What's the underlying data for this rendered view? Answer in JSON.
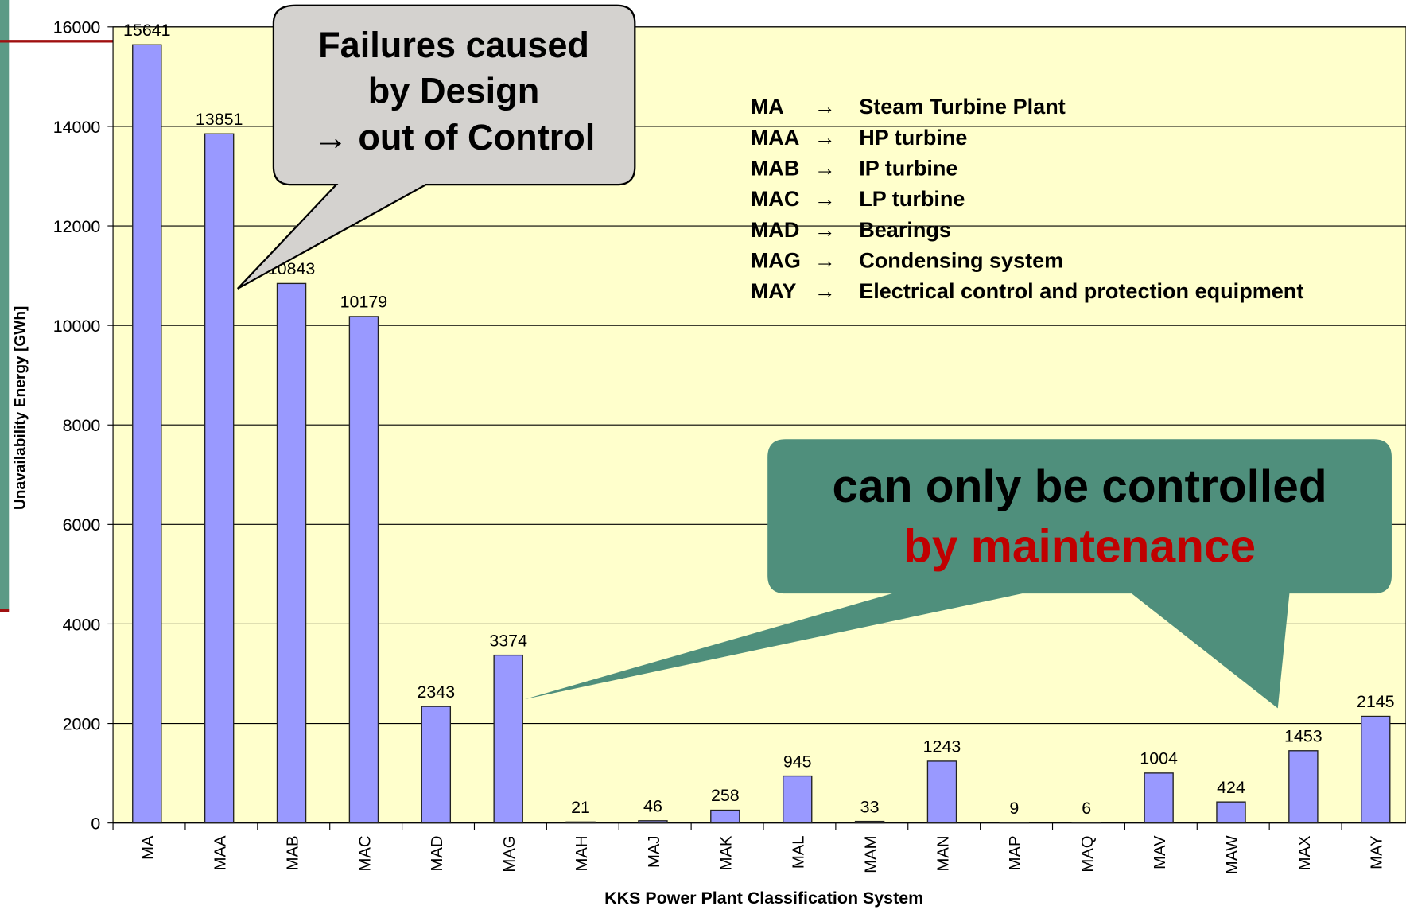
{
  "chart_data": {
    "type": "bar",
    "y_label": "Unavailability Energy [GWh]",
    "x_label": "KKS Power Plant Classification System",
    "categories": [
      "MA",
      "MAA",
      "MAB",
      "MAC",
      "MAD",
      "MAG",
      "MAH",
      "MAJ",
      "MAK",
      "MAL",
      "MAM",
      "MAN",
      "MAP",
      "MAQ",
      "MAV",
      "MAW",
      "MAX",
      "MAY"
    ],
    "values": [
      15641,
      13851,
      10843,
      10179,
      2343,
      3374,
      21,
      46,
      258,
      945,
      33,
      1243,
      9,
      6,
      1004,
      424,
      1453,
      2145
    ],
    "color": "#9999ff",
    "ylim": [
      0,
      16000
    ],
    "yticks": [
      0,
      2000,
      4000,
      6000,
      8000,
      10000,
      12000,
      14000,
      16000
    ],
    "grid": true,
    "callouts": [
      {
        "lines": [
          "Failures caused",
          "by Design",
          "→ out of Control"
        ]
      },
      {
        "lines": [
          "can only be controlled",
          "by maintenance"
        ]
      }
    ],
    "legend_notes": [
      {
        "code": "MA",
        "arrow": "→",
        "description": "Steam Turbine Plant"
      },
      {
        "code": "MAA",
        "arrow": "→",
        "description": "HP turbine"
      },
      {
        "code": "MAB",
        "arrow": "→",
        "description": "IP turbine"
      },
      {
        "code": "MAC",
        "arrow": "→",
        "description": "LP turbine"
      },
      {
        "code": "MAD",
        "arrow": "→",
        "description": "Bearings"
      },
      {
        "code": "MAG",
        "arrow": "→",
        "description": "Condensing system"
      },
      {
        "code": "MAY",
        "arrow": "→",
        "description": "Electrical control and protection equipment"
      }
    ]
  }
}
